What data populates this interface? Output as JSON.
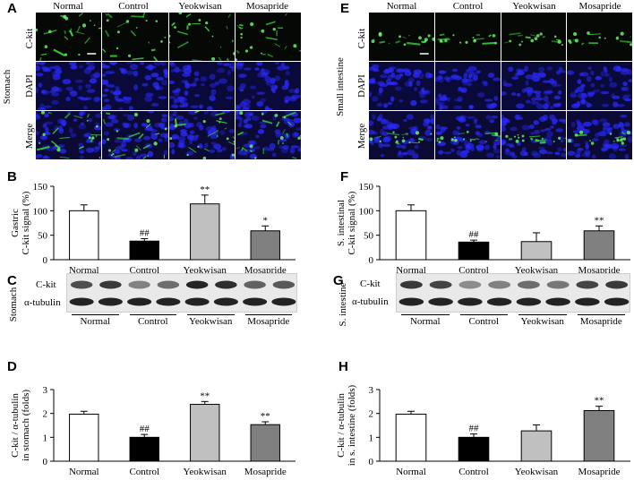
{
  "panels": {
    "A": "A",
    "B": "B",
    "C": "C",
    "D": "D",
    "E": "E",
    "F": "F",
    "G": "G",
    "H": "H"
  },
  "groups": [
    "Normal",
    "Control",
    "Yeokwisan",
    "Mosapride"
  ],
  "stomach_if": {
    "tissue_label": "Stomach",
    "rows": [
      "C-kit",
      "DAPI",
      "Merge"
    ]
  },
  "intestine_if": {
    "tissue_label": "Small intestine",
    "rows": [
      "C-kit",
      "DAPI",
      "Merge"
    ]
  },
  "western_stomach": {
    "tissue_label": "Stomach",
    "protein_top": "C-kit",
    "protein_bottom": "α-tubulin",
    "lanes": [
      "Normal",
      "Control",
      "Yeokwisan",
      "Mosapride"
    ]
  },
  "western_intestine": {
    "tissue_label": "S. intestine",
    "protein_top": "C-kit",
    "protein_bottom": "α-tubulin",
    "lanes": [
      "Normal",
      "Control",
      "Yeokwisan",
      "Mosapride"
    ]
  },
  "colors": {
    "normal": "#ffffff",
    "control": "#000000",
    "yeokwisan": "#c0c0c0",
    "mosapride": "#808080",
    "ckit_green": "#3ad43a",
    "dapi_blue": "#2a2aff"
  },
  "chart_data": [
    {
      "id": "B",
      "type": "bar",
      "categories": [
        "Normal",
        "Control",
        "Yeokwisan",
        "Mosapride"
      ],
      "values": [
        100,
        38,
        114,
        59
      ],
      "errors": [
        12,
        5,
        18,
        10
      ],
      "annotations": [
        "",
        "##",
        "**",
        "*"
      ],
      "ylabel": "Gastric\nC-kit signal (%)",
      "ylim": [
        0,
        150
      ],
      "yticks": [
        "0",
        "50",
        "100",
        "150"
      ]
    },
    {
      "id": "D",
      "type": "bar",
      "categories": [
        "Normal",
        "Control",
        "Yeokwisan",
        "Mosapride"
      ],
      "values": [
        1.97,
        1.0,
        2.38,
        1.53
      ],
      "errors": [
        0.12,
        0.12,
        0.12,
        0.12
      ],
      "annotations": [
        "",
        "##",
        "**",
        "**"
      ],
      "ylabel": "C-kit / α-tubulin\nin stomach (folds)",
      "ylim": [
        0,
        3
      ],
      "yticks": [
        "0",
        "1",
        "2",
        "3"
      ]
    },
    {
      "id": "F",
      "type": "bar",
      "categories": [
        "Normal",
        "Control",
        "Yeokwisan",
        "Mosapride"
      ],
      "values": [
        100,
        36,
        37,
        59
      ],
      "errors": [
        12,
        4,
        18,
        10
      ],
      "annotations": [
        "",
        "##",
        "",
        "**"
      ],
      "ylabel": "S. intestinal\nC-kit signal (%)",
      "ylim": [
        0,
        150
      ],
      "yticks": [
        "0",
        "50",
        "100",
        "150"
      ]
    },
    {
      "id": "H",
      "type": "bar",
      "categories": [
        "Normal",
        "Control",
        "Yeokwisan",
        "Mosapride"
      ],
      "values": [
        1.97,
        1.0,
        1.27,
        2.12
      ],
      "errors": [
        0.12,
        0.14,
        0.25,
        0.18
      ],
      "annotations": [
        "",
        "##",
        "",
        "**"
      ],
      "ylabel": "C-kit / α-tubulin\nin s. intestine (folds)",
      "ylim": [
        0,
        3
      ],
      "yticks": [
        "0",
        "1",
        "2",
        "3"
      ]
    }
  ]
}
